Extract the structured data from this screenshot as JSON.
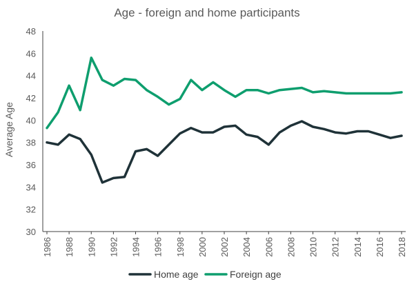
{
  "chart_data": {
    "type": "line",
    "title": "Age - foreign and home participants",
    "xlabel": "",
    "ylabel": "Average  Age",
    "ylim": [
      30,
      48
    ],
    "yticks": [
      30,
      32,
      34,
      36,
      38,
      40,
      42,
      44,
      46,
      48
    ],
    "xticks": [
      1986,
      1988,
      1990,
      1992,
      1994,
      1996,
      1998,
      2000,
      2002,
      2004,
      2006,
      2008,
      2010,
      2012,
      2014,
      2016,
      2018
    ],
    "x": [
      1986,
      1987,
      1988,
      1989,
      1990,
      1991,
      1992,
      1993,
      1994,
      1995,
      1996,
      1997,
      1998,
      1999,
      2000,
      2001,
      2002,
      2003,
      2004,
      2005,
      2006,
      2007,
      2008,
      2009,
      2010,
      2011,
      2012,
      2013,
      2014,
      2015,
      2016,
      2017,
      2018
    ],
    "legend_position": "bottom",
    "grid": false,
    "series": [
      {
        "name": "Home age",
        "color": "#1f3238",
        "values": [
          38.0,
          37.8,
          38.7,
          38.3,
          36.9,
          34.4,
          34.8,
          34.9,
          37.2,
          37.4,
          36.8,
          37.8,
          38.8,
          39.3,
          38.9,
          38.9,
          39.4,
          39.5,
          38.7,
          38.5,
          37.8,
          38.9,
          39.5,
          39.9,
          39.4,
          39.2,
          38.9,
          38.8,
          39.0,
          39.0,
          38.7,
          38.4,
          38.6
        ]
      },
      {
        "name": "Foreign age",
        "color": "#0e9e6e",
        "values": [
          39.3,
          40.7,
          43.1,
          40.9,
          45.6,
          43.6,
          43.1,
          43.7,
          43.6,
          42.7,
          42.1,
          41.4,
          41.9,
          43.6,
          42.7,
          43.4,
          42.7,
          42.1,
          42.7,
          42.7,
          42.4,
          42.7,
          42.8,
          42.9,
          42.5,
          42.6,
          42.5,
          42.4,
          42.4,
          42.4,
          42.4,
          42.4,
          42.5
        ]
      }
    ]
  }
}
